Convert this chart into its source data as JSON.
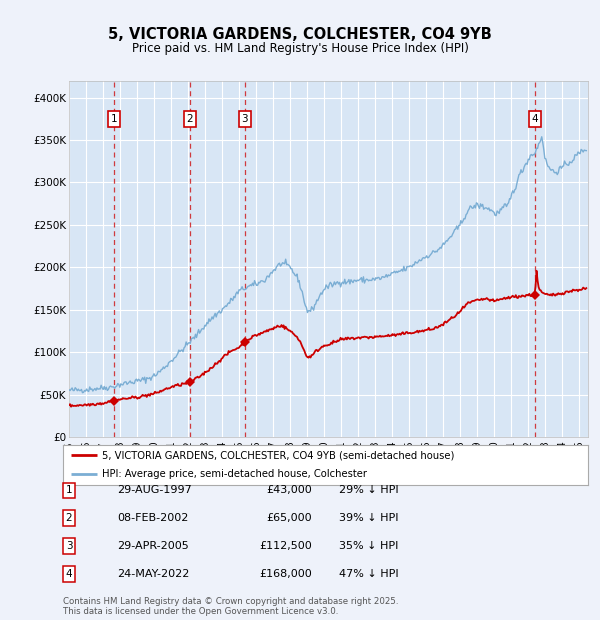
{
  "title1": "5, VICTORIA GARDENS, COLCHESTER, CO4 9YB",
  "title2": "Price paid vs. HM Land Registry's House Price Index (HPI)",
  "background_color": "#eef2fa",
  "plot_bg_color": "#d8e6f5",
  "grid_color": "#ffffff",
  "hpi_color": "#7baed4",
  "price_color": "#cc0000",
  "ylim": [
    0,
    420000
  ],
  "xlim_start": 1995,
  "xlim_end": 2025.5,
  "transactions": [
    {
      "num": 1,
      "date": "29-AUG-1997",
      "price": 43000,
      "pct": "29% ↓ HPI",
      "x_year": 1997.66
    },
    {
      "num": 2,
      "date": "08-FEB-2002",
      "price": 65000,
      "pct": "39% ↓ HPI",
      "x_year": 2002.11
    },
    {
      "num": 3,
      "date": "29-APR-2005",
      "price": 112500,
      "pct": "35% ↓ HPI",
      "x_year": 2005.33
    },
    {
      "num": 4,
      "date": "24-MAY-2022",
      "price": 168000,
      "pct": "47% ↓ HPI",
      "x_year": 2022.4
    }
  ],
  "yticks": [
    0,
    50000,
    100000,
    150000,
    200000,
    250000,
    300000,
    350000,
    400000
  ],
  "ylabels": [
    "£0",
    "£50K",
    "£100K",
    "£150K",
    "£200K",
    "£250K",
    "£300K",
    "£350K",
    "£400K"
  ],
  "footer1": "Contains HM Land Registry data © Crown copyright and database right 2025.",
  "footer2": "This data is licensed under the Open Government Licence v3.0.",
  "legend_label1": "5, VICTORIA GARDENS, COLCHESTER, CO4 9YB (semi-detached house)",
  "legend_label2": "HPI: Average price, semi-detached house, Colchester"
}
